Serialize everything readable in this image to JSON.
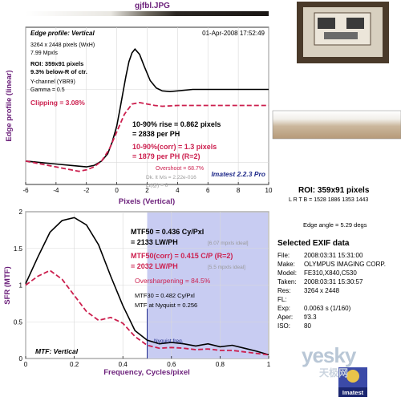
{
  "window": {
    "title": "gjfbl.JPG"
  },
  "colors": {
    "black_curve": "#000000",
    "red_curve": "#cc1f4e",
    "purple_text": "#6b1f7a",
    "nyquist_fill": "#c8ccf2"
  },
  "chart_data": [
    {
      "type": "line",
      "panel": "edge-profile",
      "title": "Edge profile: Vertical",
      "date": "01-Apr-2008 17:52:49",
      "xlabel": "Pixels (Vertical)",
      "ylabel": "Edge profile (linear)",
      "xlim": [
        -6,
        10
      ],
      "xticks": [
        "-6",
        "-4",
        "-2",
        "0",
        "2",
        "4",
        "6",
        "8",
        "10"
      ],
      "info_lines": [
        "3264 x 2448 pixels (WxH)",
        "7.99 Mpxls"
      ],
      "roi_lines": [
        "ROI: 359x91 pixels",
        "9.3% below-R of ctr."
      ],
      "channel_lines": [
        "Y-channel (YBR9)",
        "Gamma = 0.5"
      ],
      "clipping": "Clipping = 3.08%",
      "rise_lines": [
        "10-90% rise = 0.862 pixels",
        "= 2838 per PH"
      ],
      "rise_corr_lines": [
        "10-90%(corr) = 1.3 pixels",
        "= 1879 per PH  (R=2)"
      ],
      "overshoot": "Overshoot = 68.7%",
      "dk_text": "Dk. lt lvls = 2.22e-016",
      "lt_text": "Lt(@) = 0",
      "version": "Imatest 2.2.3 Pro",
      "series": [
        {
          "style": "solid",
          "color": "#000000",
          "x": [
            -6,
            -5,
            -4,
            -3,
            -2,
            -1.5,
            -1,
            -0.6,
            -0.3,
            0,
            0.2,
            0.4,
            0.6,
            0.8,
            1.0,
            1.2,
            1.5,
            1.8,
            2.2,
            2.6,
            3.0,
            3.5,
            4,
            5,
            6,
            7,
            8,
            9,
            10
          ],
          "y": [
            0.02,
            0.0,
            -0.02,
            -0.04,
            -0.06,
            -0.04,
            0.02,
            0.12,
            0.28,
            0.5,
            0.72,
            0.95,
            1.18,
            1.38,
            1.5,
            1.55,
            1.48,
            1.32,
            1.12,
            1.02,
            0.98,
            0.97,
            0.98,
            1.0,
            1.0,
            1.0,
            1.0,
            1.0,
            1.0
          ]
        },
        {
          "style": "dashed",
          "color": "#cc1f4e",
          "x": [
            -6,
            -5,
            -4,
            -3,
            -2.5,
            -2,
            -1.5,
            -1,
            -0.5,
            0,
            0.5,
            1,
            1.5,
            2,
            2.5,
            3,
            4,
            5,
            6,
            7,
            8,
            9,
            10
          ],
          "y": [
            0.02,
            -0.02,
            -0.06,
            -0.1,
            -0.12,
            -0.1,
            -0.06,
            0.02,
            0.18,
            0.42,
            0.66,
            0.8,
            0.82,
            0.8,
            0.78,
            0.77,
            0.78,
            0.78,
            0.78,
            0.78,
            0.78,
            0.78,
            0.78
          ]
        }
      ]
    },
    {
      "type": "line",
      "panel": "mtf",
      "title": "MTF: Vertical",
      "xlabel": "Frequency, Cycles/pixel",
      "ylabel": "SFR (MTF)",
      "xlim": [
        0,
        1
      ],
      "ylim": [
        0,
        2
      ],
      "xticks": [
        "0",
        "0.2",
        "0.4",
        "0.6",
        "0.8",
        "1"
      ],
      "yticks": [
        "0",
        "0.5",
        "1",
        "1.5",
        "2"
      ],
      "mtf50_lines": [
        "MTF50 = 0.436 Cy/Pxl",
        "= 2133 LW/PH"
      ],
      "mtf50_ideal": "[6.07 mpxls ideal]",
      "mtf50c_lines": [
        "MTF50(corr) = 0.415 C/P  (R=2)",
        "= 2032 LW/PH"
      ],
      "mtf50c_ideal": "[5.5 mpxls ideal]",
      "oversharpening": "Oversharpening = 84.5%",
      "mtf30": "MTF30 = 0.482 Cy/Pxl",
      "mtf_nyq": "MTF at Nyquist = 0.256",
      "nyquist_label": "Nyquist freq.",
      "nyquist_x": 0.5,
      "series": [
        {
          "style": "solid",
          "color": "#000000",
          "x": [
            0,
            0.05,
            0.1,
            0.15,
            0.2,
            0.25,
            0.3,
            0.35,
            0.4,
            0.45,
            0.5,
            0.55,
            0.6,
            0.65,
            0.7,
            0.75,
            0.8,
            0.85,
            0.9,
            0.95,
            1.0
          ],
          "y": [
            1.02,
            1.38,
            1.72,
            1.88,
            1.92,
            1.82,
            1.55,
            1.12,
            0.72,
            0.38,
            0.25,
            0.2,
            0.22,
            0.2,
            0.17,
            0.2,
            0.16,
            0.18,
            0.14,
            0.1,
            0.05
          ]
        },
        {
          "style": "dashed",
          "color": "#cc1f4e",
          "x": [
            0,
            0.05,
            0.1,
            0.15,
            0.2,
            0.25,
            0.3,
            0.35,
            0.4,
            0.45,
            0.5,
            0.55,
            0.6,
            0.65,
            0.7,
            0.75,
            0.8,
            0.85,
            0.9,
            0.95,
            1.0
          ],
          "y": [
            1.0,
            1.12,
            1.2,
            1.08,
            0.86,
            0.64,
            0.52,
            0.56,
            0.48,
            0.3,
            0.18,
            0.14,
            0.15,
            0.14,
            0.12,
            0.13,
            0.11,
            0.11,
            0.09,
            0.07,
            0.05
          ]
        }
      ]
    }
  ],
  "side": {
    "roi": "ROI: 359x91 pixels",
    "lrtb_label": "L R  T B",
    "lrtb_values": "= 1528 1886  1353 1443",
    "edge_angle": "Edge angle = 5.29 degs",
    "exif_title": "Selected EXIF data",
    "exif": [
      {
        "k": "File:",
        "v": "2008:03:31 15:31:00"
      },
      {
        "k": "Make:",
        "v": "OLYMPUS IMAGING CORP."
      },
      {
        "k": "Model:",
        "v": "FE310,X840,C530"
      },
      {
        "k": "Taken:",
        "v": "2008:03:31 15:30:57"
      },
      {
        "k": "Res:",
        "v": "3264 x 2448"
      },
      {
        "k": "FL:",
        "v": ""
      },
      {
        "k": "Exp:",
        "v": "0.0063 s  (1/160)"
      },
      {
        "k": "Aper:",
        "v": "f/3.3"
      },
      {
        "k": "ISO:",
        "v": "80"
      }
    ],
    "watermark": "yesky",
    "watermark_sub": "天极网",
    "logo": "Imatest"
  }
}
